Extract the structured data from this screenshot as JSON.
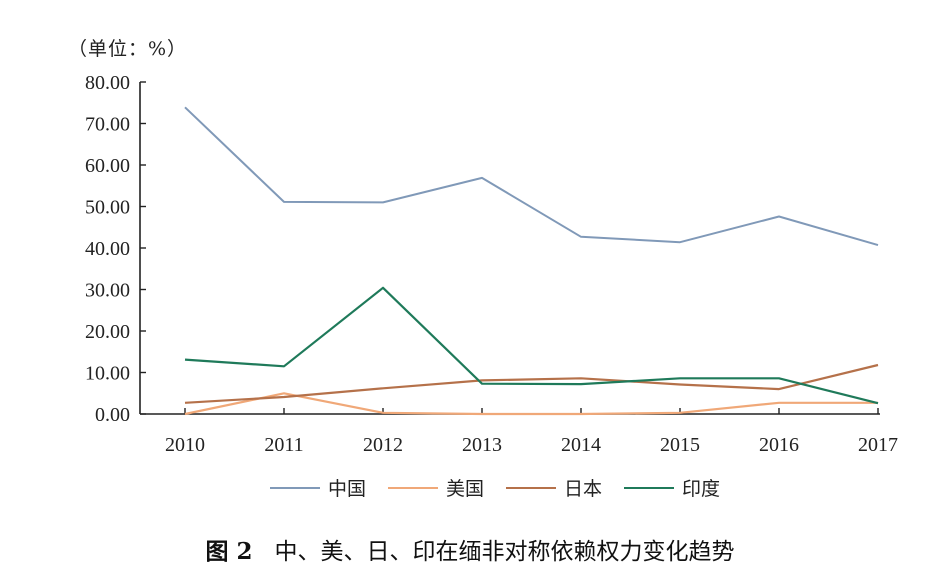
{
  "chart_data": {
    "type": "line",
    "unit_label": "（单位：%）",
    "caption_prefix": "图 2",
    "caption_text": "中、美、日、印在缅非对称依赖权力变化趋势",
    "categories": [
      "2010",
      "2011",
      "2012",
      "2013",
      "2014",
      "2015",
      "2016",
      "2017"
    ],
    "y_ticks": [
      "0.00",
      "10.00",
      "20.00",
      "30.00",
      "40.00",
      "50.00",
      "60.00",
      "70.00",
      "80.00"
    ],
    "ylim": [
      0,
      80
    ],
    "grid": false,
    "legend_position": "bottom",
    "series": [
      {
        "name": "中国",
        "color": "#8099b8",
        "values": [
          73.9,
          51.1,
          51.0,
          56.9,
          42.7,
          41.4,
          47.6,
          40.7
        ]
      },
      {
        "name": "美国",
        "color": "#f0a878",
        "values": [
          0.0,
          5.0,
          0.3,
          0.0,
          0.0,
          0.3,
          2.7,
          2.7
        ]
      },
      {
        "name": "日本",
        "color": "#b5714a",
        "values": [
          2.7,
          4.1,
          6.2,
          8.1,
          8.6,
          7.1,
          6.0,
          11.8
        ]
      },
      {
        "name": "印度",
        "color": "#1f7a5a",
        "values": [
          13.1,
          11.5,
          30.4,
          7.3,
          7.2,
          8.6,
          8.6,
          2.6
        ]
      }
    ]
  }
}
